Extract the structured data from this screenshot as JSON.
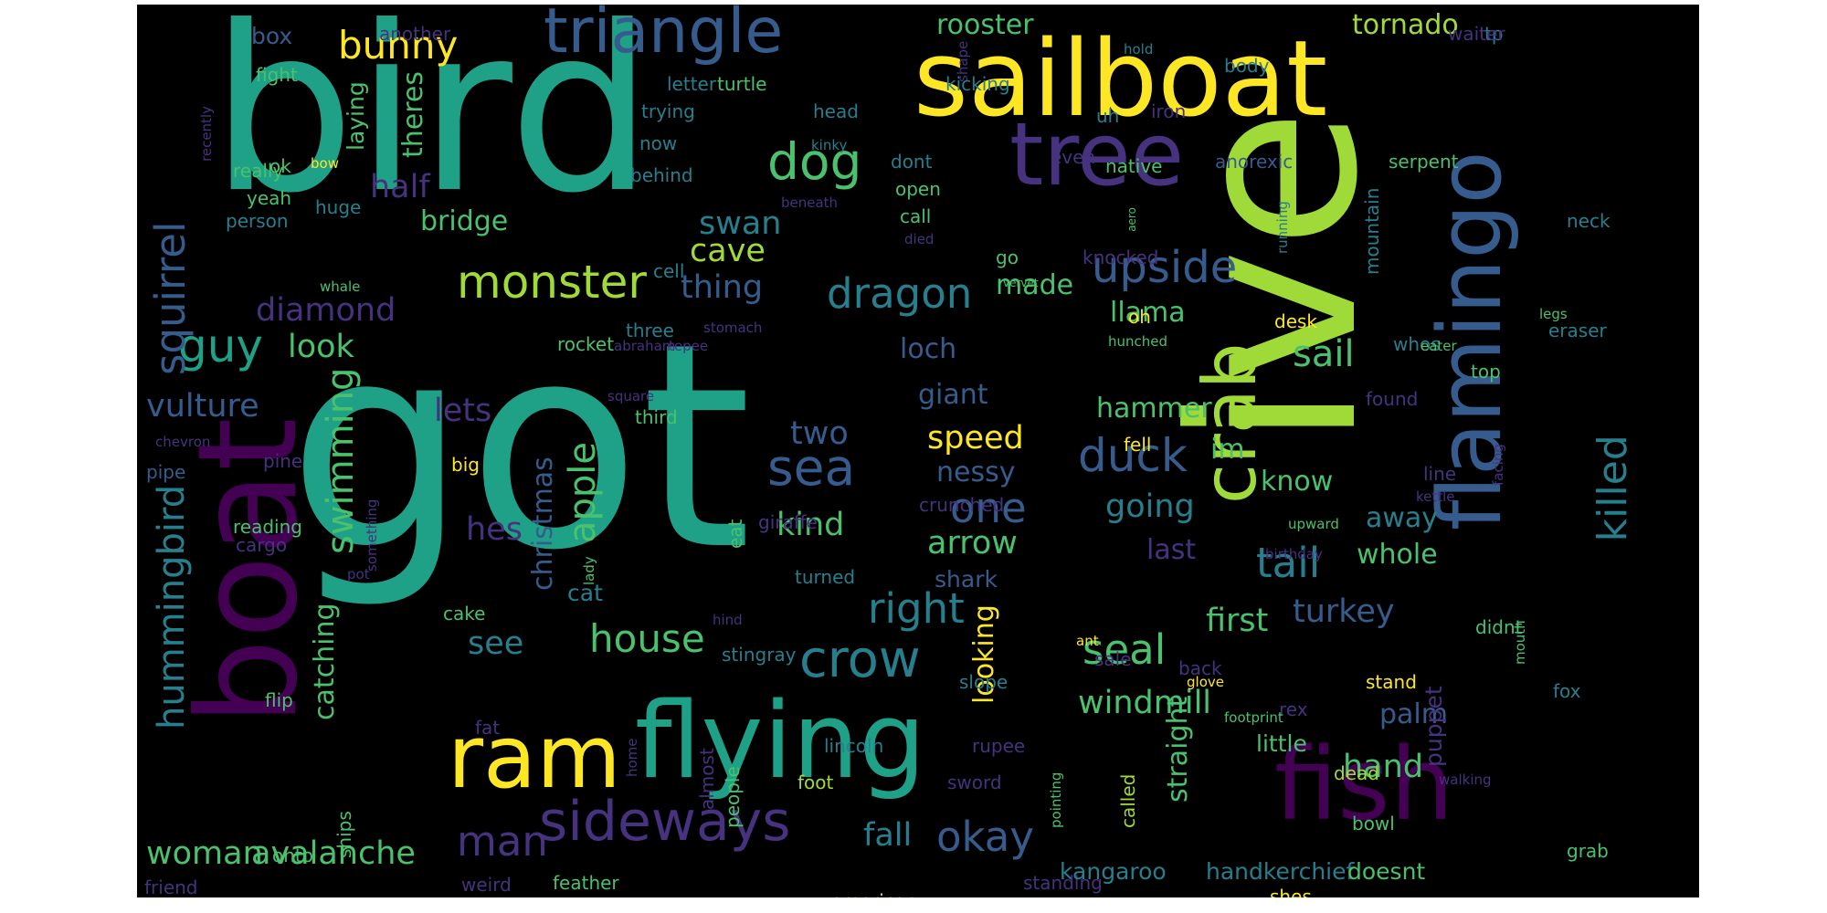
{
  "palette": [
    "#440154",
    "#46327e",
    "#365c8d",
    "#277f8e",
    "#1fa187",
    "#4ac16d",
    "#a0da39",
    "#fde725"
  ],
  "words": [
    {
      "text": "got",
      "size": 310,
      "color": "#1fa187"
    },
    {
      "text": "ive",
      "size": 250,
      "color": "#a0da39",
      "vertical": true
    },
    {
      "text": "bird",
      "size": 250,
      "color": "#1fa187"
    },
    {
      "text": "boat",
      "size": 150,
      "color": "#440154",
      "vertical": true
    },
    {
      "text": "sailboat",
      "size": 115,
      "color": "#fde725"
    },
    {
      "text": "flying",
      "size": 115,
      "color": "#1fa187"
    },
    {
      "text": "fish",
      "size": 110,
      "color": "#440154"
    },
    {
      "text": "flamingo",
      "size": 95,
      "color": "#365c8d",
      "vertical": true
    },
    {
      "text": "ram",
      "size": 95,
      "color": "#fde725"
    },
    {
      "text": "tree",
      "size": 95,
      "color": "#46327e"
    },
    {
      "text": "crab",
      "size": 80,
      "color": "#a0da39",
      "vertical": true
    },
    {
      "text": "triangle",
      "size": 68,
      "color": "#365c8d"
    },
    {
      "text": "sideways",
      "size": 60,
      "color": "#46327e"
    },
    {
      "text": "crow",
      "size": 56,
      "color": "#277f8e"
    },
    {
      "text": "dog",
      "size": 55,
      "color": "#4ac16d"
    },
    {
      "text": "sea",
      "size": 55,
      "color": "#365c8d"
    },
    {
      "text": "monster",
      "size": 50,
      "color": "#a0da39"
    },
    {
      "text": "duck",
      "size": 50,
      "color": "#365c8d"
    },
    {
      "text": "guy",
      "size": 50,
      "color": "#1fa187"
    },
    {
      "text": "upside",
      "size": 48,
      "color": "#365c8d"
    },
    {
      "text": "squirrel",
      "size": 45,
      "color": "#365c8d",
      "vertical": true
    },
    {
      "text": "dragon",
      "size": 45,
      "color": "#277f8e"
    },
    {
      "text": "right",
      "size": 45,
      "color": "#277f8e"
    },
    {
      "text": "seal",
      "size": 45,
      "color": "#4ac16d"
    },
    {
      "text": "one",
      "size": 45,
      "color": "#365c8d"
    },
    {
      "text": "tail",
      "size": 45,
      "color": "#277f8e"
    },
    {
      "text": "okay",
      "size": 45,
      "color": "#365c8d"
    },
    {
      "text": "man",
      "size": 45,
      "color": "#46327e"
    },
    {
      "text": "killed",
      "size": 44,
      "color": "#277f8e",
      "vertical": true
    },
    {
      "text": "house",
      "size": 42,
      "color": "#4ac16d"
    },
    {
      "text": "bunny",
      "size": 42,
      "color": "#fde725"
    },
    {
      "text": "sail",
      "size": 40,
      "color": "#4ac16d"
    },
    {
      "text": "hummingbird",
      "size": 40,
      "color": "#277f8e",
      "vertical": true
    },
    {
      "text": "swimming",
      "size": 40,
      "color": "#4ac16d",
      "vertical": true
    },
    {
      "text": "apple",
      "size": 40,
      "color": "#4ac16d",
      "vertical": true
    },
    {
      "text": "hand",
      "size": 35,
      "color": "#4ac16d"
    },
    {
      "text": "two",
      "size": 35,
      "color": "#365c8d"
    },
    {
      "text": "kind",
      "size": 35,
      "color": "#4ac16d"
    },
    {
      "text": "going",
      "size": 35,
      "color": "#277f8e"
    },
    {
      "text": "speed",
      "size": 35,
      "color": "#fde725"
    },
    {
      "text": "arrow",
      "size": 35,
      "color": "#4ac16d"
    },
    {
      "text": "fall",
      "size": 35,
      "color": "#277f8e"
    },
    {
      "text": "turkey",
      "size": 35,
      "color": "#365c8d"
    },
    {
      "text": "see",
      "size": 35,
      "color": "#277f8e"
    },
    {
      "text": "half",
      "size": 35,
      "color": "#46327e"
    },
    {
      "text": "swan",
      "size": 35,
      "color": "#277f8e"
    },
    {
      "text": "woman",
      "size": 35,
      "color": "#4ac16d"
    },
    {
      "text": "avalanche",
      "size": 35,
      "color": "#4ac16d"
    },
    {
      "text": "vulture",
      "size": 35,
      "color": "#365c8d"
    },
    {
      "text": "diamond",
      "size": 35,
      "color": "#46327e"
    },
    {
      "text": "thing",
      "size": 35,
      "color": "#365c8d"
    },
    {
      "text": "cave",
      "size": 35,
      "color": "#a0da39"
    },
    {
      "text": "hes",
      "size": 35,
      "color": "#46327e"
    },
    {
      "text": "windmill",
      "size": 35,
      "color": "#4ac16d"
    },
    {
      "text": "first",
      "size": 35,
      "color": "#4ac16d"
    },
    {
      "text": "look",
      "size": 35,
      "color": "#4ac16d"
    },
    {
      "text": "lets",
      "size": 35,
      "color": "#46327e"
    },
    {
      "text": "loch",
      "size": 30,
      "color": "#365c8d"
    },
    {
      "text": "giant",
      "size": 30,
      "color": "#365c8d"
    },
    {
      "text": "hammer",
      "size": 30,
      "color": "#4ac16d"
    },
    {
      "text": "llama",
      "size": 30,
      "color": "#4ac16d"
    },
    {
      "text": "bridge",
      "size": 30,
      "color": "#4ac16d"
    },
    {
      "text": "know",
      "size": 30,
      "color": "#4ac16d"
    },
    {
      "text": "last",
      "size": 30,
      "color": "#46327e"
    },
    {
      "text": "away",
      "size": 30,
      "color": "#277f8e"
    },
    {
      "text": "whole",
      "size": 30,
      "color": "#4ac16d"
    },
    {
      "text": "shark",
      "size": 25,
      "color": "#365c8d"
    },
    {
      "text": "im",
      "size": 30,
      "color": "#4ac16d"
    },
    {
      "text": "nessy",
      "size": 30,
      "color": "#365c8d"
    },
    {
      "text": "rooster",
      "size": 30,
      "color": "#4ac16d"
    },
    {
      "text": "tornado",
      "size": 30,
      "color": "#a0da39"
    },
    {
      "text": "theres",
      "size": 30,
      "color": "#4ac16d",
      "vertical": true
    },
    {
      "text": "made",
      "size": 30,
      "color": "#4ac16d"
    },
    {
      "text": "palm",
      "size": 30,
      "color": "#365c8d"
    },
    {
      "text": "kangaroo",
      "size": 25,
      "color": "#277f8e"
    },
    {
      "text": "handkerchief",
      "size": 25,
      "color": "#277f8e"
    },
    {
      "text": "doesnt",
      "size": 25,
      "color": "#4ac16d"
    },
    {
      "text": "little",
      "size": 25,
      "color": "#4ac16d"
    },
    {
      "text": "catching",
      "size": 30,
      "color": "#4ac16d",
      "vertical": true
    },
    {
      "text": "christmas",
      "size": 30,
      "color": "#365c8d",
      "vertical": true
    },
    {
      "text": "straight",
      "size": 30,
      "color": "#4ac16d",
      "vertical": true
    },
    {
      "text": "looking",
      "size": 30,
      "color": "#fde725",
      "vertical": true
    },
    {
      "text": "puppet",
      "size": 25,
      "color": "#46327e",
      "vertical": true
    },
    {
      "text": "laying",
      "size": 25,
      "color": "#4ac16d",
      "vertical": true
    },
    {
      "text": "cat",
      "size": 25,
      "color": "#277f8e"
    },
    {
      "text": "cake",
      "size": 20,
      "color": "#4ac16d"
    },
    {
      "text": "person",
      "size": 20,
      "color": "#277f8e"
    },
    {
      "text": "box",
      "size": 25,
      "color": "#365c8d"
    },
    {
      "text": "top",
      "size": 20,
      "color": "#4ac16d"
    },
    {
      "text": "whos",
      "size": 20,
      "color": "#277f8e"
    },
    {
      "text": "rex",
      "size": 20,
      "color": "#46327e"
    },
    {
      "text": "stand",
      "size": 20,
      "color": "#fde725"
    },
    {
      "text": "dead",
      "size": 20,
      "color": "#a0da39"
    },
    {
      "text": "big",
      "size": 20,
      "color": "#fde725"
    },
    {
      "text": "oh",
      "size": 20,
      "color": "#fde725"
    },
    {
      "text": "desk",
      "size": 20,
      "color": "#fde725"
    },
    {
      "text": "american",
      "size": 20,
      "color": "#fde725"
    },
    {
      "text": "shes",
      "size": 20,
      "color": "#fde725"
    },
    {
      "text": "yeah",
      "size": 20,
      "color": "#4ac16d"
    },
    {
      "text": "ok",
      "size": 20,
      "color": "#4ac16d"
    },
    {
      "text": "really",
      "size": 20,
      "color": "#4ac16d"
    },
    {
      "text": "huge",
      "size": 20,
      "color": "#277f8e"
    },
    {
      "text": "serpent",
      "size": 20,
      "color": "#4ac16d"
    },
    {
      "text": "anorexic",
      "size": 20,
      "color": "#365c8d"
    },
    {
      "text": "native",
      "size": 20,
      "color": "#4ac16d"
    },
    {
      "text": "even",
      "size": 20,
      "color": "#46327e"
    },
    {
      "text": "iron",
      "size": 20,
      "color": "#46327e"
    },
    {
      "text": "uh",
      "size": 20,
      "color": "#277f8e"
    },
    {
      "text": "body",
      "size": 20,
      "color": "#277f8e"
    },
    {
      "text": "tp",
      "size": 20,
      "color": "#277f8e"
    },
    {
      "text": "waiter",
      "size": 20,
      "color": "#46327e"
    },
    {
      "text": "hold",
      "size": 15,
      "color": "#277f8e"
    },
    {
      "text": "shape",
      "size": 15,
      "color": "#46327e",
      "vertical": true
    },
    {
      "text": "kicking",
      "size": 20,
      "color": "#277f8e"
    },
    {
      "text": "turtle",
      "size": 20,
      "color": "#4ac16d"
    },
    {
      "text": "letter",
      "size": 20,
      "color": "#277f8e"
    },
    {
      "text": "trying",
      "size": 20,
      "color": "#277f8e"
    },
    {
      "text": "now",
      "size": 20,
      "color": "#277f8e"
    },
    {
      "text": "head",
      "size": 20,
      "color": "#277f8e"
    },
    {
      "text": "kinky",
      "size": 15,
      "color": "#277f8e"
    },
    {
      "text": "behind",
      "size": 20,
      "color": "#277f8e"
    },
    {
      "text": "dont",
      "size": 20,
      "color": "#277f8e"
    },
    {
      "text": "open",
      "size": 20,
      "color": "#4ac16d"
    },
    {
      "text": "call",
      "size": 20,
      "color": "#4ac16d"
    },
    {
      "text": "died",
      "size": 15,
      "color": "#46327e"
    },
    {
      "text": "beneath",
      "size": 15,
      "color": "#46327e"
    },
    {
      "text": "another",
      "size": 20,
      "color": "#46327e"
    },
    {
      "text": "fight",
      "size": 20,
      "color": "#4ac16d"
    },
    {
      "text": "recently",
      "size": 15,
      "color": "#46327e",
      "vertical": true
    },
    {
      "text": "bow",
      "size": 15,
      "color": "#fde725"
    },
    {
      "text": "cell",
      "size": 20,
      "color": "#277f8e"
    },
    {
      "text": "whale",
      "size": 15,
      "color": "#4ac16d"
    },
    {
      "text": "go",
      "size": 20,
      "color": "#4ac16d"
    },
    {
      "text": "knocked",
      "size": 20,
      "color": "#46327e"
    },
    {
      "text": "running",
      "size": 15,
      "color": "#277f8e",
      "vertical": true
    },
    {
      "text": "vervet",
      "size": 12,
      "color": "#4ac16d"
    },
    {
      "text": "aero",
      "size": 12,
      "color": "#4ac16d",
      "vertical": true
    },
    {
      "text": "mountain",
      "size": 20,
      "color": "#277f8e",
      "vertical": true
    },
    {
      "text": "neck",
      "size": 20,
      "color": "#277f8e"
    },
    {
      "text": "legs",
      "size": 15,
      "color": "#4ac16d"
    },
    {
      "text": "eraser",
      "size": 20,
      "color": "#277f8e"
    },
    {
      "text": "three",
      "size": 20,
      "color": "#277f8e"
    },
    {
      "text": "stomach",
      "size": 15,
      "color": "#46327e"
    },
    {
      "text": "tepee",
      "size": 15,
      "color": "#46327e"
    },
    {
      "text": "abraham",
      "size": 15,
      "color": "#46327e"
    },
    {
      "text": "rocket",
      "size": 20,
      "color": "#4ac16d"
    },
    {
      "text": "hunched",
      "size": 15,
      "color": "#4ac16d"
    },
    {
      "text": "eater",
      "size": 15,
      "color": "#4ac16d"
    },
    {
      "text": "found",
      "size": 20,
      "color": "#46327e"
    },
    {
      "text": "square",
      "size": 15,
      "color": "#46327e"
    },
    {
      "text": "third",
      "size": 20,
      "color": "#4ac16d"
    },
    {
      "text": "chevron",
      "size": 15,
      "color": "#46327e"
    },
    {
      "text": "pine",
      "size": 20,
      "color": "#46327e"
    },
    {
      "text": "pipe",
      "size": 20,
      "color": "#365c8d"
    },
    {
      "text": "something",
      "size": 15,
      "color": "#46327e",
      "vertical": true
    },
    {
      "text": "fell",
      "size": 20,
      "color": "#fde725"
    },
    {
      "text": "facing",
      "size": 15,
      "color": "#46327e",
      "vertical": true
    },
    {
      "text": "line",
      "size": 20,
      "color": "#46327e"
    },
    {
      "text": "crunched",
      "size": 20,
      "color": "#46327e"
    },
    {
      "text": "kettle",
      "size": 15,
      "color": "#46327e"
    },
    {
      "text": "upward",
      "size": 15,
      "color": "#4ac16d"
    },
    {
      "text": "reading",
      "size": 20,
      "color": "#4ac16d"
    },
    {
      "text": "cargo",
      "size": 20,
      "color": "#46327e"
    },
    {
      "text": "giraffe",
      "size": 20,
      "color": "#46327e"
    },
    {
      "text": "eat",
      "size": 20,
      "color": "#4ac16d",
      "vertical": true
    },
    {
      "text": "lady",
      "size": 15,
      "color": "#4ac16d",
      "vertical": true
    },
    {
      "text": "turned",
      "size": 20,
      "color": "#277f8e"
    },
    {
      "text": "birthday",
      "size": 15,
      "color": "#46327e"
    },
    {
      "text": "pot",
      "size": 15,
      "color": "#46327e"
    },
    {
      "text": "hind",
      "size": 15,
      "color": "#46327e"
    },
    {
      "text": "didnt",
      "size": 20,
      "color": "#4ac16d"
    },
    {
      "text": "mouth",
      "size": 15,
      "color": "#4ac16d",
      "vertical": true
    },
    {
      "text": "stingray",
      "size": 20,
      "color": "#277f8e"
    },
    {
      "text": "ant",
      "size": 15,
      "color": "#fde725"
    },
    {
      "text": "sale",
      "size": 20,
      "color": "#46327e"
    },
    {
      "text": "back",
      "size": 20,
      "color": "#46327e"
    },
    {
      "text": "slope",
      "size": 20,
      "color": "#277f8e"
    },
    {
      "text": "glove",
      "size": 15,
      "color": "#fde725"
    },
    {
      "text": "fox",
      "size": 20,
      "color": "#277f8e"
    },
    {
      "text": "flip",
      "size": 20,
      "color": "#4ac16d"
    },
    {
      "text": "fat",
      "size": 20,
      "color": "#46327e"
    },
    {
      "text": "lincoln",
      "size": 20,
      "color": "#277f8e"
    },
    {
      "text": "rupee",
      "size": 20,
      "color": "#46327e"
    },
    {
      "text": "footprint",
      "size": 15,
      "color": "#4ac16d"
    },
    {
      "text": "onto",
      "size": 20,
      "color": "#4ac16d"
    },
    {
      "text": "ships",
      "size": 20,
      "color": "#4ac16d",
      "vertical": true
    },
    {
      "text": "home",
      "size": 15,
      "color": "#46327e",
      "vertical": true
    },
    {
      "text": "almost",
      "size": 20,
      "color": "#46327e",
      "vertical": true
    },
    {
      "text": "people",
      "size": 20,
      "color": "#4ac16d",
      "vertical": true
    },
    {
      "text": "foot",
      "size": 20,
      "color": "#a0da39"
    },
    {
      "text": "sword",
      "size": 20,
      "color": "#46327e"
    },
    {
      "text": "pointing",
      "size": 15,
      "color": "#4ac16d",
      "vertical": true
    },
    {
      "text": "called",
      "size": 20,
      "color": "#a0da39",
      "vertical": true
    },
    {
      "text": "walking",
      "size": 15,
      "color": "#46327e"
    },
    {
      "text": "bowl",
      "size": 20,
      "color": "#4ac16d"
    },
    {
      "text": "grab",
      "size": 20,
      "color": "#4ac16d"
    },
    {
      "text": "friend",
      "size": 20,
      "color": "#46327e"
    },
    {
      "text": "weird",
      "size": 20,
      "color": "#46327e"
    },
    {
      "text": "feather",
      "size": 20,
      "color": "#4ac16d"
    },
    {
      "text": "standing",
      "size": 20,
      "color": "#46327e"
    }
  ]
}
